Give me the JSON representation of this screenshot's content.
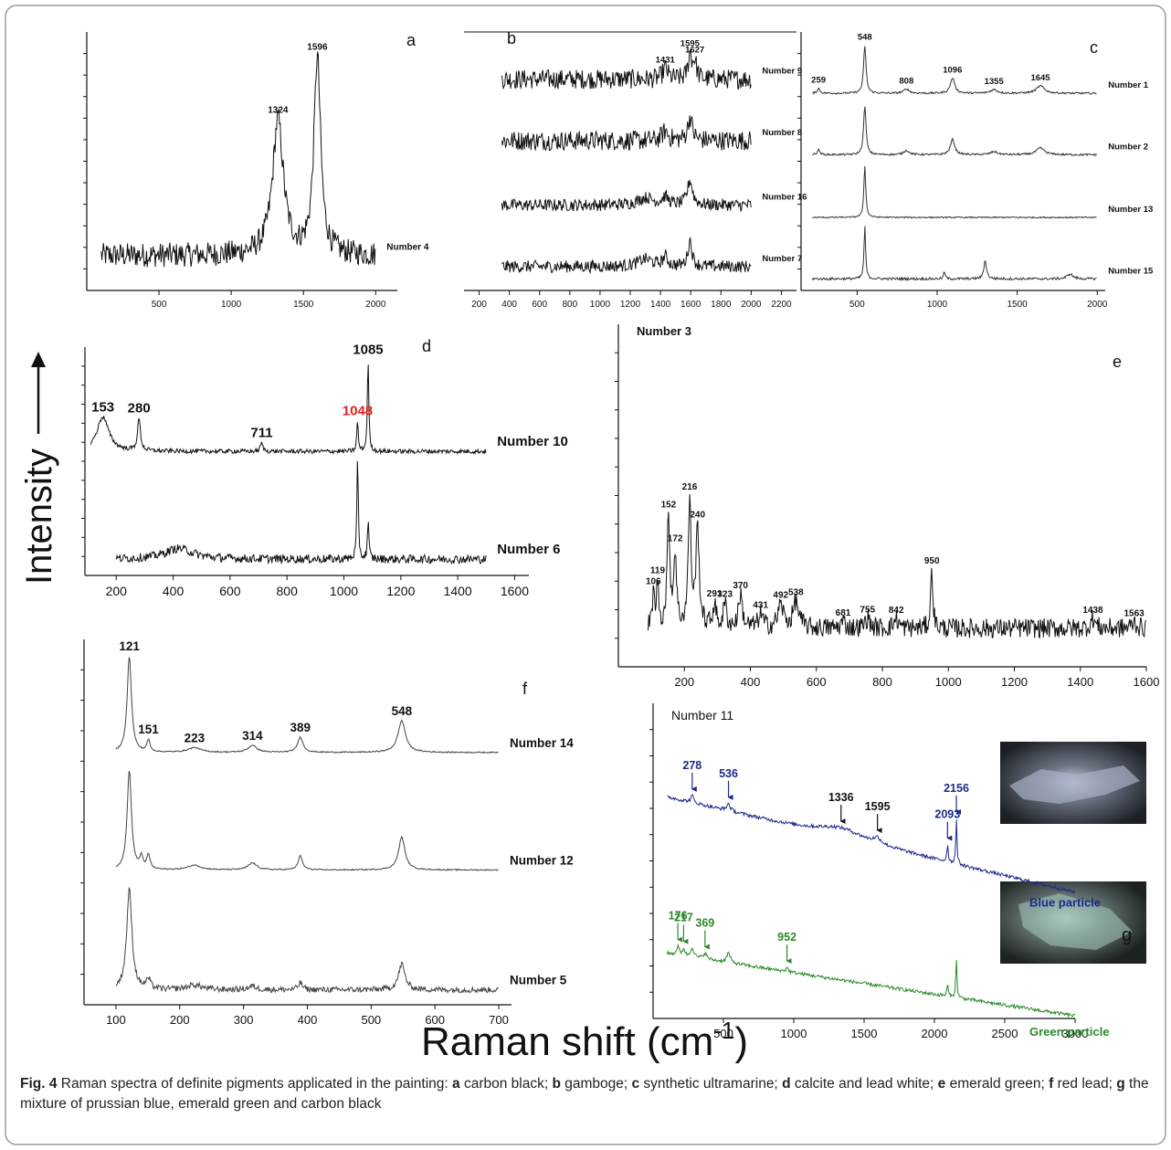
{
  "chart_data": [
    {
      "type": "spectrum",
      "letter": "a",
      "xlim": [
        0,
        2150
      ],
      "xticks": [
        500,
        1000,
        1500,
        2000
      ],
      "series": [
        {
          "name": "Number 4",
          "color": "#111111",
          "x_range": [
            100,
            2000
          ],
          "baseline": [
            0.12,
            0.12
          ],
          "noise": 0.05,
          "peaks": [
            1324,
            1596
          ],
          "heights": [
            0.55,
            0.8
          ],
          "widths": [
            45,
            28
          ],
          "labeled": [
            true,
            true
          ]
        }
      ]
    },
    {
      "type": "spectrum",
      "letter": "b",
      "xlim": [
        100,
        2300
      ],
      "xticks": [
        200,
        400,
        600,
        800,
        1000,
        1200,
        1400,
        1600,
        1800,
        2000,
        2200
      ],
      "series": [
        {
          "name": "Number 9",
          "color": "#111111",
          "x_range": [
            350,
            2000
          ],
          "baseline": [
            0.35,
            0.35
          ],
          "noise": 0.16,
          "peaks": [
            1431,
            1595,
            1627
          ],
          "heights": [
            0.18,
            0.4,
            0.28
          ],
          "widths": [
            20,
            14,
            14
          ],
          "labeled": [
            true,
            true,
            true
          ]
        },
        {
          "name": "Number 8",
          "color": "#111111",
          "x_range": [
            350,
            2000
          ],
          "baseline": [
            0.35,
            0.35
          ],
          "noise": 0.16,
          "peaks": [
            1431,
            1595
          ],
          "heights": [
            0.15,
            0.38
          ],
          "widths": [
            25,
            18
          ],
          "labeled": [
            false,
            false
          ]
        },
        {
          "name": "Number 16",
          "color": "#111111",
          "x_range": [
            350,
            2000
          ],
          "baseline": [
            0.3,
            0.3
          ],
          "noise": 0.1,
          "peaks": [
            1300,
            1431,
            1595
          ],
          "heights": [
            0.12,
            0.12,
            0.4
          ],
          "widths": [
            60,
            25,
            20
          ],
          "labeled": [
            false,
            false,
            false
          ]
        },
        {
          "name": "Number 7",
          "color": "#111111",
          "x_range": [
            350,
            2000
          ],
          "baseline": [
            0.3,
            0.3
          ],
          "noise": 0.1,
          "peaks": [
            1300,
            1431,
            1595
          ],
          "heights": [
            0.12,
            0.15,
            0.42
          ],
          "widths": [
            60,
            20,
            16
          ],
          "labeled": [
            false,
            false,
            false
          ]
        }
      ]
    },
    {
      "type": "spectrum",
      "letter": "c",
      "xlim": [
        150,
        2050
      ],
      "xticks": [
        500,
        1000,
        1500,
        2000
      ],
      "series": [
        {
          "name": "Number 1",
          "color": "#333333",
          "x_range": [
            220,
            2000
          ],
          "baseline": [
            0.12,
            0.12
          ],
          "noise": 0.015,
          "peaks": [
            259,
            548,
            808,
            1096,
            1355,
            1645
          ],
          "heights": [
            0.08,
            0.78,
            0.07,
            0.25,
            0.06,
            0.12
          ],
          "widths": [
            10,
            9,
            20,
            16,
            25,
            30
          ],
          "labeled": [
            true,
            true,
            true,
            true,
            true,
            true
          ]
        },
        {
          "name": "Number 2",
          "color": "#333333",
          "x_range": [
            220,
            2000
          ],
          "baseline": [
            0.12,
            0.12
          ],
          "noise": 0.015,
          "peaks": [
            259,
            548,
            808,
            1096,
            1355,
            1645
          ],
          "heights": [
            0.08,
            0.8,
            0.07,
            0.25,
            0.05,
            0.11
          ],
          "widths": [
            10,
            9,
            20,
            16,
            25,
            30
          ],
          "labeled": [
            false,
            false,
            false,
            false,
            false,
            false
          ]
        },
        {
          "name": "Number 13",
          "color": "#333333",
          "x_range": [
            220,
            2000
          ],
          "baseline": [
            0.1,
            0.1
          ],
          "noise": 0.01,
          "peaks": [
            548
          ],
          "heights": [
            0.85
          ],
          "widths": [
            7
          ],
          "labeled": [
            false
          ]
        },
        {
          "name": "Number 15",
          "color": "#333333",
          "x_range": [
            220,
            2000
          ],
          "baseline": [
            0.1,
            0.1
          ],
          "noise": 0.02,
          "peaks": [
            548,
            1045,
            1300,
            1830
          ],
          "heights": [
            0.85,
            0.12,
            0.3,
            0.08
          ],
          "widths": [
            6,
            6,
            10,
            20
          ],
          "labeled": [
            false,
            false,
            false,
            false
          ]
        }
      ]
    },
    {
      "type": "spectrum",
      "letter": "d",
      "xlim": [
        90,
        1650
      ],
      "xticks": [
        200,
        400,
        600,
        800,
        1000,
        1200,
        1400,
        1600
      ],
      "series": [
        {
          "name": "Number 10",
          "color": "#111111",
          "x_range": [
            110,
            1500
          ],
          "baseline": [
            0.1,
            0.1
          ],
          "noise": 0.02,
          "peaks": [
            153,
            280,
            711,
            1048,
            1085
          ],
          "heights": [
            0.32,
            0.3,
            0.08,
            0.28,
            0.85
          ],
          "widths": [
            25,
            6,
            5,
            3,
            3
          ],
          "labeled": [
            true,
            true,
            true,
            true,
            true
          ],
          "label_colors": [
            "#111111",
            "#111111",
            "#111111",
            "#e0201b",
            "#111111"
          ]
        },
        {
          "name": "Number 6",
          "color": "#111111",
          "x_range": [
            200,
            1500
          ],
          "baseline": [
            0.1,
            0.1
          ],
          "noise": 0.04,
          "peaks": [
            420,
            1048,
            1085
          ],
          "heights": [
            0.1,
            0.9,
            0.35
          ],
          "widths": [
            60,
            3,
            3
          ],
          "labeled": [
            false,
            false,
            false
          ]
        }
      ]
    },
    {
      "type": "spectrum",
      "letter": "e",
      "xlim": [
        0,
        1600
      ],
      "xticks": [
        200,
        400,
        600,
        800,
        1000,
        1200,
        1400,
        1600
      ],
      "name_position": "top",
      "series": [
        {
          "name": "Number 3",
          "color": "#111111",
          "x_range": [
            90,
            1600
          ],
          "baseline": [
            0.1,
            0.1
          ],
          "noise": 0.03,
          "peaks": [
            106,
            119,
            152,
            172,
            216,
            240,
            291,
            323,
            370,
            431,
            492,
            538,
            681,
            755,
            842,
            950,
            1438,
            1563
          ],
          "heights": [
            0.1,
            0.13,
            0.33,
            0.22,
            0.38,
            0.3,
            0.07,
            0.07,
            0.1,
            0.04,
            0.07,
            0.08,
            0.02,
            0.03,
            0.03,
            0.18,
            0.03,
            0.02
          ],
          "widths": [
            4,
            4,
            5,
            5,
            5,
            6,
            6,
            6,
            7,
            8,
            10,
            10,
            8,
            8,
            8,
            4,
            8,
            8
          ],
          "labeled": [
            true,
            true,
            true,
            true,
            true,
            true,
            true,
            true,
            true,
            true,
            true,
            true,
            true,
            true,
            true,
            true,
            true,
            true
          ]
        }
      ]
    },
    {
      "type": "spectrum",
      "letter": "f",
      "xlim": [
        50,
        720
      ],
      "xticks": [
        100,
        200,
        300,
        400,
        500,
        600,
        700
      ],
      "series": [
        {
          "name": "Number 14",
          "color": "#444444",
          "x_range": [
            100,
            700
          ],
          "baseline": [
            0.1,
            0.1
          ],
          "noise": 0.005,
          "peaks": [
            121,
            151,
            223,
            314,
            389,
            548
          ],
          "heights": [
            0.82,
            0.1,
            0.04,
            0.06,
            0.13,
            0.27
          ],
          "widths": [
            4,
            3,
            12,
            8,
            5,
            7
          ],
          "labeled": [
            true,
            true,
            true,
            true,
            true,
            true
          ]
        },
        {
          "name": "Number 12",
          "color": "#444444",
          "x_range": [
            100,
            700
          ],
          "baseline": [
            0.1,
            0.1
          ],
          "noise": 0.005,
          "peaks": [
            121,
            140,
            151,
            223,
            314,
            389,
            548
          ],
          "heights": [
            0.85,
            0.1,
            0.12,
            0.04,
            0.06,
            0.12,
            0.28
          ],
          "widths": [
            4,
            3,
            3,
            12,
            8,
            4,
            6
          ],
          "labeled": [
            false,
            false,
            false,
            false,
            false,
            false,
            false
          ]
        },
        {
          "name": "Number 5",
          "color": "#444444",
          "x_range": [
            100,
            700
          ],
          "baseline": [
            0.08,
            0.08
          ],
          "noise": 0.025,
          "peaks": [
            121,
            151,
            223,
            314,
            389,
            548
          ],
          "heights": [
            0.85,
            0.08,
            0.04,
            0.03,
            0.06,
            0.22
          ],
          "widths": [
            5,
            4,
            14,
            8,
            4,
            6
          ],
          "labeled": [
            false,
            false,
            false,
            false,
            false,
            false
          ]
        }
      ]
    },
    {
      "type": "spectrum",
      "letter": "g",
      "title": "Number 11",
      "xlim": [
        0,
        3000
      ],
      "xticks": [
        500,
        1000,
        1500,
        2000,
        2500,
        3000
      ],
      "name_position": "below",
      "arrows": true,
      "series": [
        {
          "name": "Blue particle",
          "color": "#1c2a8a",
          "x_range": [
            100,
            3000
          ],
          "baseline": [
            0.52,
            -0.15
          ],
          "noise": 0.012,
          "peaks": [
            278,
            536,
            1336,
            1595,
            2093,
            2156
          ],
          "heights": [
            0.05,
            0.05,
            0.07,
            0.04,
            0.12,
            0.32
          ],
          "widths": [
            12,
            15,
            200,
            30,
            6,
            5
          ],
          "labeled": [
            true,
            true,
            true,
            true,
            true,
            true
          ],
          "label_colors": [
            "#1c2a8a",
            "#1c2a8a",
            "#111111",
            "#111111",
            "#1c2a8a",
            "#1c2a8a"
          ]
        },
        {
          "name": "Green particle",
          "color": "#2a8a2a",
          "x_range": [
            100,
            3000
          ],
          "baseline": [
            0.42,
            -0.02
          ],
          "noise": 0.012,
          "peaks": [
            176,
            217,
            278,
            369,
            536,
            952,
            2093,
            2156
          ],
          "heights": [
            0.06,
            0.05,
            0.07,
            0.04,
            0.07,
            0.03,
            0.08,
            0.27
          ],
          "widths": [
            10,
            10,
            12,
            15,
            15,
            10,
            6,
            5
          ],
          "labeled": [
            true,
            true,
            false,
            true,
            false,
            true,
            false,
            false
          ],
          "label_colors": [
            "#2a8a2a",
            "#2a8a2a",
            "#2a8a2a",
            "#2a8a2a",
            "#2a8a2a",
            "#2a8a2a",
            "#2a8a2a",
            "#2a8a2a"
          ]
        }
      ]
    }
  ],
  "y_label": "Intensity",
  "x_label": {
    "text": "Raman shift (cm",
    "sup": "-1",
    "end": ")"
  },
  "caption": [
    {
      "text": "Fig. 4",
      "bold": true
    },
    {
      "text": "  Raman spectra of definite pigments applicated in the painting: "
    },
    {
      "text": "a",
      "bold": true
    },
    {
      "text": " carbon black; "
    },
    {
      "text": "b",
      "bold": true
    },
    {
      "text": " gamboge; "
    },
    {
      "text": "c",
      "bold": true
    },
    {
      "text": " synthetic ultramarine; "
    },
    {
      "text": "d",
      "bold": true
    },
    {
      "text": " calcite and lead white; "
    },
    {
      "text": "e",
      "bold": true
    },
    {
      "text": " emerald green; "
    },
    {
      "text": "f",
      "bold": true
    },
    {
      "text": " red lead; "
    },
    {
      "text": "g",
      "bold": true
    },
    {
      "text": " the mixture of prussian blue, emerald green and carbon black"
    }
  ]
}
